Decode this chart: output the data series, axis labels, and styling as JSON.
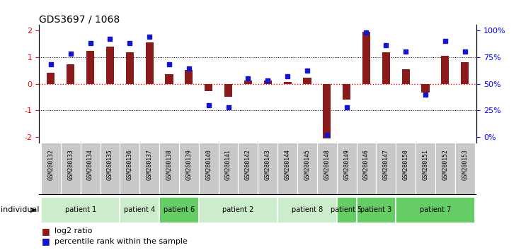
{
  "title": "GDS3697 / 1068",
  "samples": [
    "GSM280132",
    "GSM280133",
    "GSM280134",
    "GSM280135",
    "GSM280136",
    "GSM280137",
    "GSM280138",
    "GSM280139",
    "GSM280140",
    "GSM280141",
    "GSM280142",
    "GSM280143",
    "GSM280144",
    "GSM280145",
    "GSM280148",
    "GSM280149",
    "GSM280146",
    "GSM280147",
    "GSM280150",
    "GSM280151",
    "GSM280152",
    "GSM280153"
  ],
  "log2_ratio": [
    0.42,
    0.72,
    1.22,
    1.38,
    1.18,
    1.55,
    0.35,
    0.52,
    -0.28,
    -0.5,
    0.12,
    0.13,
    0.08,
    0.22,
    -2.05,
    -0.6,
    1.95,
    1.18,
    0.55,
    -0.32,
    1.05,
    0.82
  ],
  "percentile": [
    68,
    78,
    88,
    92,
    88,
    94,
    68,
    64,
    30,
    28,
    55,
    53,
    57,
    62,
    2,
    28,
    98,
    86,
    80,
    40,
    90,
    80
  ],
  "patients": [
    {
      "label": "patient 1",
      "start": 0,
      "end": 4,
      "color": "#ccedcc"
    },
    {
      "label": "patient 4",
      "start": 4,
      "end": 6,
      "color": "#ccedcc"
    },
    {
      "label": "patient 6",
      "start": 6,
      "end": 8,
      "color": "#66cc66"
    },
    {
      "label": "patient 2",
      "start": 8,
      "end": 12,
      "color": "#ccedcc"
    },
    {
      "label": "patient 8",
      "start": 12,
      "end": 15,
      "color": "#ccedcc"
    },
    {
      "label": "patient 5",
      "start": 15,
      "end": 16,
      "color": "#66cc66"
    },
    {
      "label": "patient 3",
      "start": 16,
      "end": 18,
      "color": "#66cc66"
    },
    {
      "label": "patient 7",
      "start": 18,
      "end": 22,
      "color": "#66cc66"
    }
  ],
  "ylim": [
    -2.2,
    2.2
  ],
  "bar_color": "#8B1A1A",
  "dot_color": "#1515cc",
  "sample_bg_color": "#c8c8c8",
  "bar_width": 0.4
}
